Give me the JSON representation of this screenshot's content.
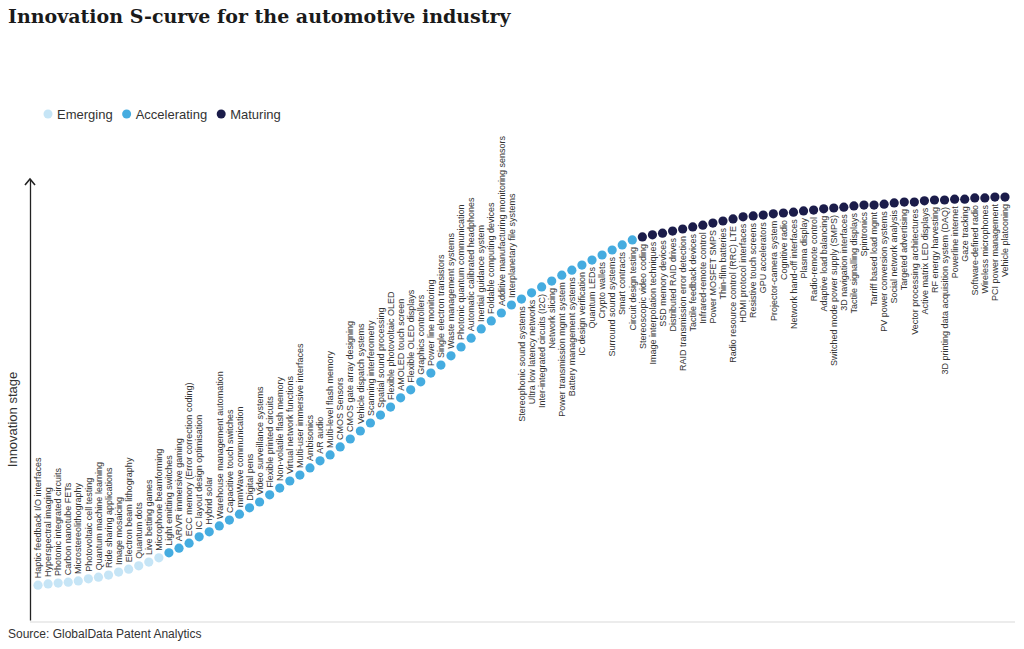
{
  "chart_data": {
    "type": "scatter",
    "title": "Innovation S-curve for the automotive industry",
    "y_label": "Innovation stage",
    "source": "Source: GlobalData Patent Analytics",
    "legend": "top-left",
    "tick_labels": false,
    "ylim": [
      0,
      105
    ],
    "categories": [
      "Haptic feedback I/O interfaces",
      "Hyperspectral imaging",
      "Photonic integrated circuits",
      "Carbon nanotube FETs",
      "Microstereolithography",
      "Photovoltaic cell testing",
      "Quantum machine learning",
      "Ride sharing applications",
      "Image mosaicing",
      "Electron beam lithography",
      "Quantum dots",
      "Live betting games",
      "Microphone beamforming",
      "Light emitting switches",
      "AR/VR immersive gaming",
      "ECC memory (Error correction coding)",
      "IC layout design optimisation",
      "Hybrid solar",
      "Warehouse management automation",
      "Capacitive touch switches",
      "mmWave communication",
      "Digital pens",
      "Video surveillance systems",
      "Flexible printed circuits",
      "Non-volatile flash memory",
      "Virtual network functions",
      "Multi-user immersive interfaces",
      "Ambisonics",
      "AR audio",
      "Multi-level flash memory",
      "CMOS Sensors",
      "CMOS gate array designing",
      "Vehicle dispatch systems",
      "Scanning interferometry",
      "Spatial sound processing",
      "Flexible photovoltaic OLED",
      "AMOLED touch screen",
      "Flexible OLED displays",
      "Graphics controllers",
      "Power line monitoring",
      "Single electron transistors",
      "Waste management systems",
      "Photonic quantum communication",
      "Automatic calibrated headphones",
      "Inertial guidance system",
      "Foldable computing devices",
      "Additive manufacturing monitoring sensors",
      "Interplanetary file systems",
      "Stereophonic sound systems",
      "Ultra low latency networks",
      "Inter-integrated circuits (I2C)",
      "Network slicing",
      "Power transmission mgmt system",
      "Battery management systems",
      "IC design verification",
      "Quantum LEDs",
      "Crypto wallets",
      "Surround sound systems",
      "Smart contracts",
      "Circuit design testing",
      "Stereoscopic video coding",
      "Image interpolation techniques",
      "SSD memory devices",
      "Distributed RAID drives",
      "RAID transmission error detection",
      "Tactile feedback devices",
      "Infrared-remote control",
      "Power MOSFET SMPS",
      "Thin-film batteries",
      "Radio resource control (RRC) LTE",
      "HDMI protocol interfaces",
      "Resistive touch screens",
      "GPU accelerators",
      "Projector-camera system",
      "Cognitive radio",
      "Network hand-off interfaces",
      "Plasma display",
      "Radio-remote control",
      "Adaptive load balancing",
      "Switched mode power supply (SMPS)",
      "3D navigation interfaces",
      "Tactile signalling displays",
      "Spintronics",
      "Tarriff based load mgmt",
      "PV power conversion systems",
      "Social network analysis",
      "Targeted advertising",
      "Vector processing architectures",
      "Active matrix LED displays",
      "RF energy harvesting",
      "3D printing data acquisition system (DAQ)",
      "Powerline internet",
      "Gaze tracking",
      "Software-defined radio",
      "Wireless microphones",
      "PCI power management",
      "Vehicle platooning"
    ],
    "series": [
      {
        "name": "Emerging",
        "color": "#c6e5f6",
        "values": [
          8.3,
          8.6,
          8.8,
          9.0,
          9.3,
          9.8,
          10.2,
          10.7,
          11.4,
          12.1,
          12.9,
          13.8,
          14.8,
          null,
          null,
          null,
          null,
          null,
          null,
          null,
          null,
          null,
          null,
          null,
          null,
          null,
          null,
          null,
          null,
          null,
          null,
          null,
          null,
          null,
          null,
          null,
          null,
          null,
          null,
          null,
          null,
          null,
          null,
          null,
          null,
          null,
          null,
          null,
          null,
          null,
          null,
          null,
          null,
          null,
          null,
          null,
          null,
          null,
          null,
          null,
          null,
          null,
          null,
          null,
          null,
          null,
          null,
          null,
          null,
          null,
          null,
          null,
          null,
          null,
          null,
          null,
          null,
          null,
          null,
          null,
          null,
          null,
          null,
          null,
          null,
          null,
          null,
          null,
          null,
          null,
          null,
          null,
          null,
          null,
          null,
          null,
          null
        ]
      },
      {
        "name": "Accelerating",
        "color": "#45ace0",
        "values": [
          null,
          null,
          null,
          null,
          null,
          null,
          null,
          null,
          null,
          null,
          null,
          null,
          null,
          16.0,
          17.1,
          18.3,
          19.8,
          21.0,
          22.4,
          23.8,
          25.2,
          26.7,
          28.1,
          29.8,
          31.4,
          33.1,
          34.5,
          36.2,
          37.9,
          39.3,
          41.2,
          43.1,
          45.0,
          46.9,
          48.8,
          50.7,
          52.9,
          54.8,
          56.7,
          58.8,
          60.7,
          62.9,
          65.0,
          67.1,
          69.3,
          71.2,
          73.1,
          75.0,
          76.4,
          77.9,
          79.3,
          80.7,
          82.1,
          83.3,
          84.5,
          85.7,
          86.9,
          88.1,
          89.3,
          90.5,
          null,
          null,
          null,
          null,
          null,
          null,
          null,
          null,
          null,
          null,
          null,
          null,
          null,
          null,
          null,
          null,
          null,
          null,
          null,
          null,
          null,
          null,
          null,
          null,
          null,
          null,
          null,
          null,
          null,
          null,
          null,
          null,
          null,
          null,
          null,
          null,
          null
        ]
      },
      {
        "name": "Maturing",
        "color": "#1b1c4a",
        "values": [
          null,
          null,
          null,
          null,
          null,
          null,
          null,
          null,
          null,
          null,
          null,
          null,
          null,
          null,
          null,
          null,
          null,
          null,
          null,
          null,
          null,
          null,
          null,
          null,
          null,
          null,
          null,
          null,
          null,
          null,
          null,
          null,
          null,
          null,
          null,
          null,
          null,
          null,
          null,
          null,
          null,
          null,
          null,
          null,
          null,
          null,
          null,
          null,
          null,
          null,
          null,
          null,
          null,
          null,
          null,
          null,
          null,
          null,
          null,
          null,
          91.2,
          91.7,
          92.1,
          92.6,
          93.1,
          93.6,
          94.0,
          94.5,
          95.0,
          95.5,
          96.0,
          96.2,
          96.4,
          96.7,
          96.9,
          97.1,
          97.4,
          97.6,
          97.9,
          98.1,
          98.3,
          98.6,
          98.8,
          98.8,
          99.0,
          99.3,
          99.5,
          99.5,
          99.8,
          100,
          100,
          100.2,
          100.2,
          100.5,
          100.5,
          100.7,
          100.7
        ]
      }
    ]
  }
}
